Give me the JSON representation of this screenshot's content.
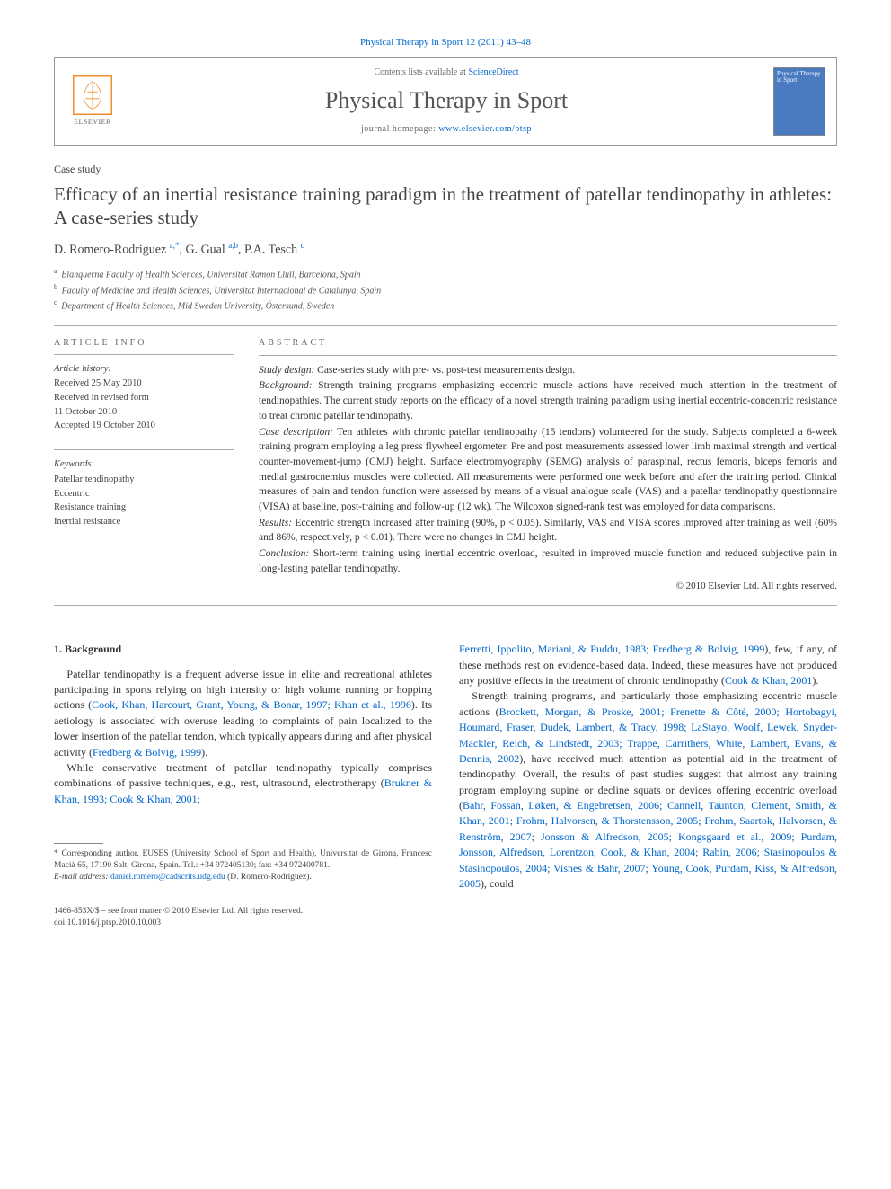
{
  "journalRef": "Physical Therapy in Sport 12 (2011) 43–48",
  "header": {
    "contentsPrefix": "Contents lists available at ",
    "contentsLink": "ScienceDirect",
    "journalTitle": "Physical Therapy in Sport",
    "homepagePrefix": "journal homepage: ",
    "homepageUrl": "www.elsevier.com/ptsp",
    "elsevierLabel": "ELSEVIER",
    "coverTitle": "Physical Therapy in Sport"
  },
  "caseLabel": "Case study",
  "title": "Efficacy of an inertial resistance training paradigm in the treatment of patellar tendinopathy in athletes: A case-series study",
  "authorsHtml": "D. Romero-Rodriguez <sup>a,*</sup>, G. Gual <sup>a,b</sup>, P.A. Tesch <sup>c</sup>",
  "affiliations": [
    {
      "sup": "a",
      "text": "Blanquerna Faculty of Health Sciences, Universitat Ramon Llull, Barcelona, Spain"
    },
    {
      "sup": "b",
      "text": "Faculty of Medicine and Health Sciences, Universitat Internacional de Catalunya, Spain"
    },
    {
      "sup": "c",
      "text": "Department of Health Sciences, Mid Sweden University, Östersund, Sweden"
    }
  ],
  "infoHeading": "ARTICLE INFO",
  "abstractHeading": "ABSTRACT",
  "history": {
    "label": "Article history:",
    "received": "Received 25 May 2010",
    "revised1": "Received in revised form",
    "revised2": "11 October 2010",
    "accepted": "Accepted 19 October 2010"
  },
  "keywords": {
    "label": "Keywords:",
    "items": [
      "Patellar tendinopathy",
      "Eccentric",
      "Resistance training",
      "Inertial resistance"
    ]
  },
  "abstract": {
    "studyDesignLabel": "Study design:",
    "studyDesign": " Case-series study with pre- vs. post-test measurements design.",
    "backgroundLabel": "Background:",
    "background": " Strength training programs emphasizing eccentric muscle actions have received much attention in the treatment of tendinopathies. The current study reports on the efficacy of a novel strength training paradigm using inertial eccentric-concentric resistance to treat chronic patellar tendinopathy.",
    "caseLabel": "Case description:",
    "case": " Ten athletes with chronic patellar tendinopathy (15 tendons) volunteered for the study. Subjects completed a 6-week training program employing a leg press flywheel ergometer. Pre and post measurements assessed lower limb maximal strength and vertical counter-movement-jump (CMJ) height. Surface electromyography (SEMG) analysis of paraspinal, rectus femoris, biceps femoris and medial gastrocnemius muscles were collected. All measurements were performed one week before and after the training period. Clinical measures of pain and tendon function were assessed by means of a visual analogue scale (VAS) and a patellar tendinopathy questionnaire (VISA) at baseline, post-training and follow-up (12 wk). The Wilcoxon signed-rank test was employed for data comparisons.",
    "resultsLabel": "Results:",
    "results": " Eccentric strength increased after training (90%, p < 0.05). Similarly, VAS and VISA scores improved after training as well (60% and 86%, respectively, p < 0.01). There were no changes in CMJ height.",
    "conclusionLabel": "Conclusion:",
    "conclusion": " Short-term training using inertial eccentric overload, resulted in improved muscle function and reduced subjective pain in long-lasting patellar tendinopathy.",
    "copyright": "© 2010 Elsevier Ltd. All rights reserved."
  },
  "bodyHeading": "1. Background",
  "body": {
    "p1a": "Patellar tendinopathy is a frequent adverse issue in elite and recreational athletes participating in sports relying on high intensity or high volume running or hopping actions (",
    "p1c1": "Cook, Khan, Harcourt, Grant, Young, & Bonar, 1997; Khan et al., 1996",
    "p1b": "). Its aetiology is associated with overuse leading to complaints of pain localized to the lower insertion of the patellar tendon, which typically appears during and after physical activity (",
    "p1c2": "Fredberg & Bolvig, 1999",
    "p1c": ").",
    "p2a": "While conservative treatment of patellar tendinopathy typically comprises combinations of passive techniques, e.g., rest, ultrasound, electrotherapy (",
    "p2c1": "Brukner & Khan, 1993; Cook & Khan, 2001;",
    "p3c1": "Ferretti, Ippolito, Mariani, & Puddu, 1983; Fredberg & Bolvig, 1999",
    "p3a": "), few, if any, of these methods rest on evidence-based data. Indeed, these measures have not produced any positive effects in the treatment of chronic tendinopathy (",
    "p3c2": "Cook & Khan, 2001",
    "p3b": ").",
    "p4a": "Strength training programs, and particularly those emphasizing eccentric muscle actions (",
    "p4c1": "Brockett, Morgan, & Proske, 2001; Frenette & Côté, 2000; Hortobagyi, Houmard, Fraser, Dudek, Lambert, & Tracy, 1998; LaStayo, Woolf, Lewek, Snyder-Mackler, Reich, & Lindstedt, 2003; Trappe, Carrithers, White, Lambert, Evans, & Dennis, 2002",
    "p4b": "), have received much attention as potential aid in the treatment of tendinopathy. Overall, the results of past studies suggest that almost any training program employing supine or decline squats or devices offering eccentric overload (",
    "p4c2": "Bahr, Fossan, Løken, & Engebretsen, 2006; Cannell, Taunton, Clement, Smith, & Khan, 2001; Frohm, Halvorsen, & Thorstensson, 2005; Frohm, Saartok, Halvorsen, & Renström, 2007; Jonsson & Alfredson, 2005; Kongsgaard et al., 2009; Purdam, Jonsson, Alfredson, Lorentzon, Cook, & Khan, 2004; Rabin, 2006; Stasinopoulos & Stasinopoulos, 2004; Visnes & Bahr, 2007; Young, Cook, Purdam, Kiss, & Alfredson, 2005",
    "p4c": "), could"
  },
  "footnotes": {
    "corr": "* Corresponding author. EUSES (University School of Sport and Health), Universitat de Girona, Francesc Macià 65, 17190 Salt, Girona, Spain. Tel.: +34 972405130; fax: +34 972400781.",
    "emailLabel": "E-mail address: ",
    "email": "daniel.romero@cadscrits.udg.edu",
    "emailSuffix": " (D. Romero-Rodriguez)."
  },
  "bottom": {
    "line1": "1466-853X/$ – see front matter © 2010 Elsevier Ltd. All rights reserved.",
    "line2": "doi:10.1016/j.ptsp.2010.10.003"
  }
}
